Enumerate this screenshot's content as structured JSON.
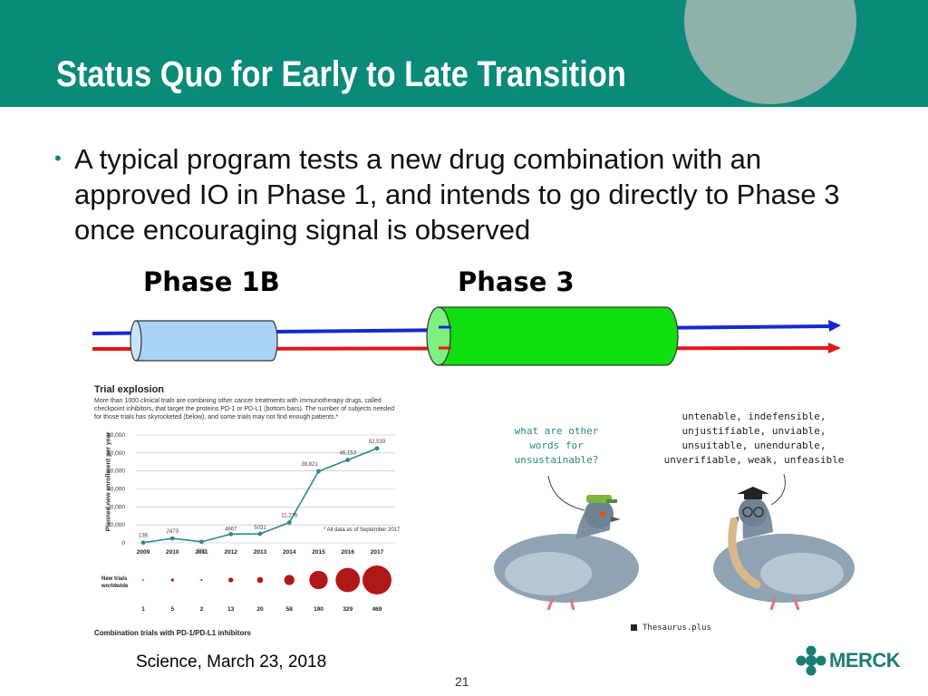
{
  "slide": {
    "title": "Status Quo for Early to Late Transition",
    "bullet": "A typical program tests a new drug combination with an approved IO in Phase 1, and intends to go directly to Phase 3 once encouraging signal is observed",
    "phase1_label": "Phase 1B",
    "phase3_label": "Phase 3",
    "citation": "Science, March 23, 2018",
    "page_number": "21",
    "logo_text": "MERCK",
    "colors": {
      "header": "#0a8a78",
      "accent_circle": "#8fb1aa",
      "phase1_tube": "#a9d4f5",
      "phase3_tube": "#10e010",
      "blue_line": "#1428d2",
      "red_line": "#e11818",
      "chart_line": "#2a8a88",
      "bubbles": "#b01818"
    }
  },
  "chart": {
    "title": "Trial explosion",
    "description": "More than 1000 clinical trials are combining other cancer treatments with immunotherapy drugs, called checkpoint inhibitors, that target the proteins PD-1 or PD-L1 (bottom bars). The number of subjects needed for those trials has skyrocketed (below), and some trials may not find enough patients.*",
    "ylabel": "Planned new enrollment per year",
    "footnote": "* All data as of September 2017",
    "bubble_label": "New trials worldwide",
    "footer": "Combination trials with PD-1/PD-L1 inhibitors"
  },
  "chart_data": {
    "type": "line",
    "x": [
      "2009",
      "2010",
      "2011",
      "2012",
      "2013",
      "2014",
      "2015",
      "2016",
      "2017"
    ],
    "values": [
      136,
      2473,
      582,
      4867,
      5031,
      11276,
      39821,
      46153,
      52539
    ],
    "value_labels": [
      "136",
      "2473",
      "582",
      "4867",
      "5031",
      "11,276",
      "39,821",
      "46,153",
      "52,539"
    ],
    "y_ticks": [
      "0",
      "10,000",
      "20,000",
      "30,000",
      "40,000",
      "50,000",
      "60,000"
    ],
    "y_tick_values": [
      0,
      10000,
      20000,
      30000,
      40000,
      50000,
      60000
    ],
    "ylim": [
      0,
      60000
    ],
    "new_trials": [
      1,
      5,
      2,
      13,
      20,
      58,
      190,
      329,
      469
    ],
    "grid": true
  },
  "cartoon": {
    "left_bubble": "what are other\nwords for\nunsustainable?",
    "right_bubble": "untenable, indefensible,\nunjustifiable, unviable,\nunsuitable, unendurable,\nunverifiable, weak, unfeasible",
    "credit": "Thesaurus.plus"
  }
}
